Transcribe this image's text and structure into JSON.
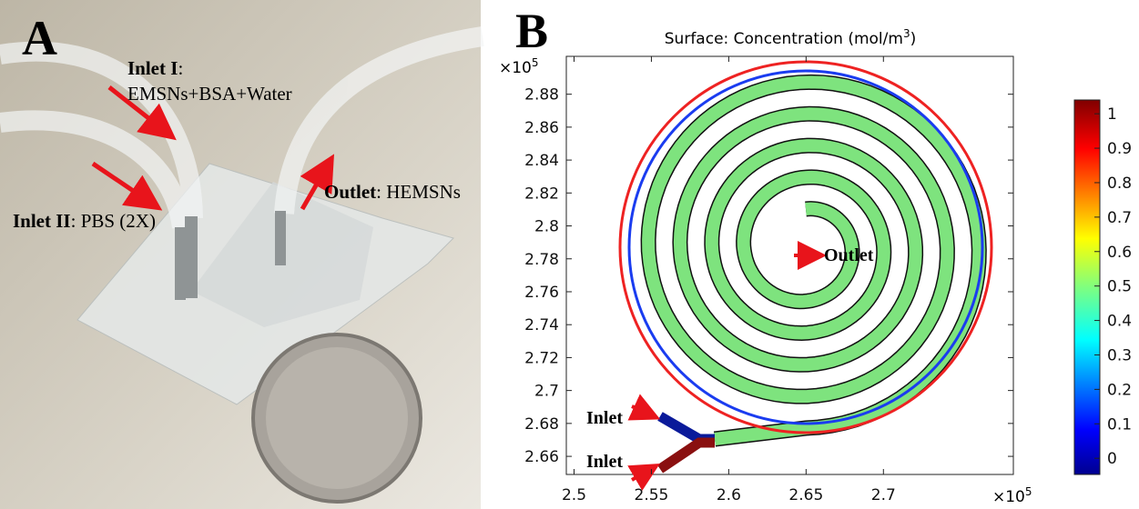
{
  "panel_a": {
    "label": "A",
    "inlet_1": {
      "bold": "Inlet I",
      "rest": ":",
      "line2": "EMSNs+BSA+Water"
    },
    "inlet_2": {
      "bold": "Inlet II",
      "rest": ": PBS (2X)"
    },
    "outlet": {
      "bold": "Outlet",
      "rest": ": HEMSNs"
    }
  },
  "panel_b": {
    "label": "B",
    "title": {
      "main": "Surface: Concentration (mol/m",
      "sup": "3",
      "end": ")"
    },
    "x_exponent": {
      "base": "×10",
      "power": "5"
    },
    "y_exponent": {
      "base": "×10",
      "power": "5"
    },
    "xlim": [
      2.495,
      2.784
    ],
    "xticks": [
      2.5,
      2.55,
      2.6,
      2.65,
      2.7
    ],
    "ylim": [
      2.649,
      2.903
    ],
    "yticks": [
      2.66,
      2.68,
      2.7,
      2.72,
      2.74,
      2.76,
      2.78,
      2.8,
      2.82,
      2.84,
      2.86,
      2.88
    ],
    "colorbar": {
      "lim": [
        -0.047,
        1.04
      ],
      "ticks": [
        0,
        0.1,
        0.2,
        0.3,
        0.4,
        0.5,
        0.6,
        0.7,
        0.8,
        0.9,
        1
      ]
    },
    "annotations": {
      "outlet": "Outlet",
      "inlet_top": "Inlet",
      "inlet_bottom": "Inlet"
    }
  }
}
